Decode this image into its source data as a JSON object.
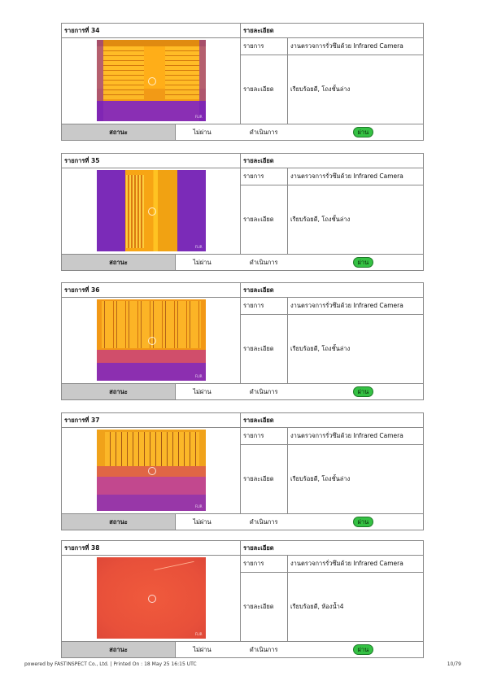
{
  "labels": {
    "details_header": "รายละเอียด",
    "item_label": "รายการ",
    "detail_label": "รายละเอียด",
    "status_label": "สถานะ",
    "fail": "ไม่ผ่าน",
    "in_progress": "ดำเนินการ",
    "pass": "ผ่าน"
  },
  "items": [
    {
      "title": "รายการที่ 34",
      "item": "งานตรวจการรั่วซึมด้วย Infrared Camera",
      "detail": "เรียบร้อยดี, โถงชั้นล่าง",
      "image_brand": "FLIR"
    },
    {
      "title": "รายการที่ 35",
      "item": "งานตรวจการรั่วซึมด้วย Infrared Camera",
      "detail": "เรียบร้อยดี, โถงชั้นล่าง",
      "image_brand": "FLIR"
    },
    {
      "title": "รายการที่ 36",
      "item": "งานตรวจการรั่วซึมด้วย Infrared Camera",
      "detail": "เรียบร้อยดี, โถงชั้นล่าง",
      "image_brand": "FLIR"
    },
    {
      "title": "รายการที่ 37",
      "item": "งานตรวจการรั่วซึมด้วย Infrared Camera",
      "detail": "เรียบร้อยดี, โถงชั้นล่าง",
      "image_brand": "FLIR"
    },
    {
      "title": "รายการที่ 38",
      "item": "งานตรวจการรั่วซึมด้วย Infrared Camera",
      "detail": "เรียบร้อยดี, ห้องน้ำ4",
      "image_brand": "FLIR"
    }
  ],
  "footer": {
    "text": "powered by FASTINSPECT Co., Ltd. | Printed On : 18 May 25 16:15 UTC",
    "page": "10/79"
  }
}
